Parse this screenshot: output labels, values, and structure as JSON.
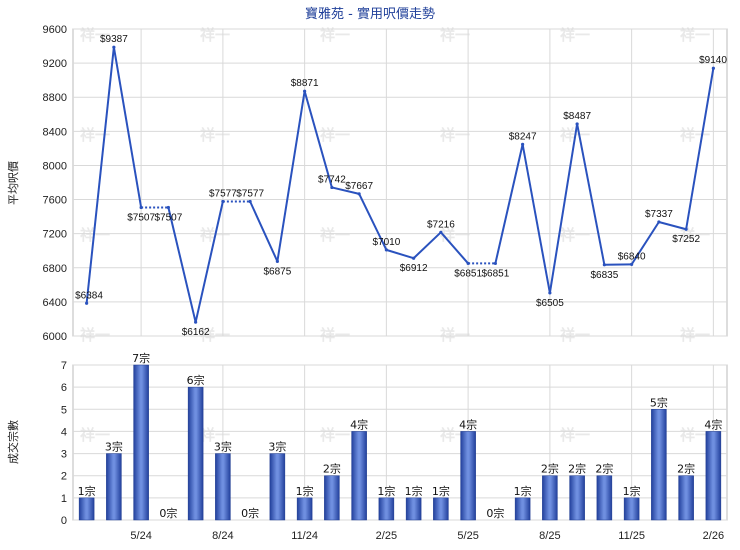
{
  "chart_data": [
    {
      "type": "line",
      "title": "寶雅苑 - 實用呎價走勢",
      "ylabel": "平均呎價",
      "ylim": [
        6000,
        9600
      ],
      "yticks": [
        6000,
        6400,
        6800,
        7200,
        7600,
        8000,
        8400,
        8800,
        9200,
        9600
      ],
      "xticks": [
        "5/24",
        "8/24",
        "11/24",
        "2/25",
        "5/25",
        "8/25",
        "11/25",
        "2/26"
      ],
      "grid": true,
      "series": [
        {
          "values": [
            6384,
            9387,
            7507,
            7507,
            6162,
            7577,
            7577,
            6875,
            8871,
            7742,
            7667,
            7010,
            6912,
            7216,
            6851,
            6851,
            8247,
            6505,
            8487,
            6835,
            6840,
            7337,
            7252,
            9140
          ],
          "labels": [
            "$6384",
            "$9387",
            "$7507",
            "$7507",
            "$6162",
            "$7577",
            "$7577",
            "$6875",
            "$8871",
            "$7742",
            "$7667",
            "$7010",
            "$6912",
            "$7216",
            "$6851",
            "$6851",
            "$8247",
            "$6505",
            "$8487",
            "$6835",
            "$6840",
            "$7337",
            "$7252",
            "$9140"
          ],
          "color": "#2a52be"
        }
      ]
    },
    {
      "type": "bar",
      "ylabel": "成交宗數",
      "ylim": [
        0,
        7
      ],
      "yticks": [
        0,
        1,
        2,
        3,
        4,
        5,
        6,
        7
      ],
      "xticks": [
        "5/24",
        "8/24",
        "11/24",
        "2/25",
        "5/25",
        "8/25",
        "11/25",
        "2/26"
      ],
      "grid": true,
      "values": [
        1,
        3,
        7,
        0,
        6,
        3,
        0,
        3,
        1,
        2,
        4,
        1,
        1,
        1,
        4,
        0,
        1,
        2,
        2,
        2,
        1,
        5,
        2,
        4
      ],
      "labels": [
        "1宗",
        "3宗",
        "7宗",
        "0宗",
        "6宗",
        "3宗",
        "0宗",
        "3宗",
        "1宗",
        "2宗",
        "4宗",
        "1宗",
        "1宗",
        "1宗",
        "4宗",
        "0宗",
        "1宗",
        "2宗",
        "2宗",
        "2宗",
        "1宗",
        "5宗",
        "2宗",
        "4宗"
      ],
      "color": "#2a52be"
    }
  ],
  "watermark": "祥一"
}
